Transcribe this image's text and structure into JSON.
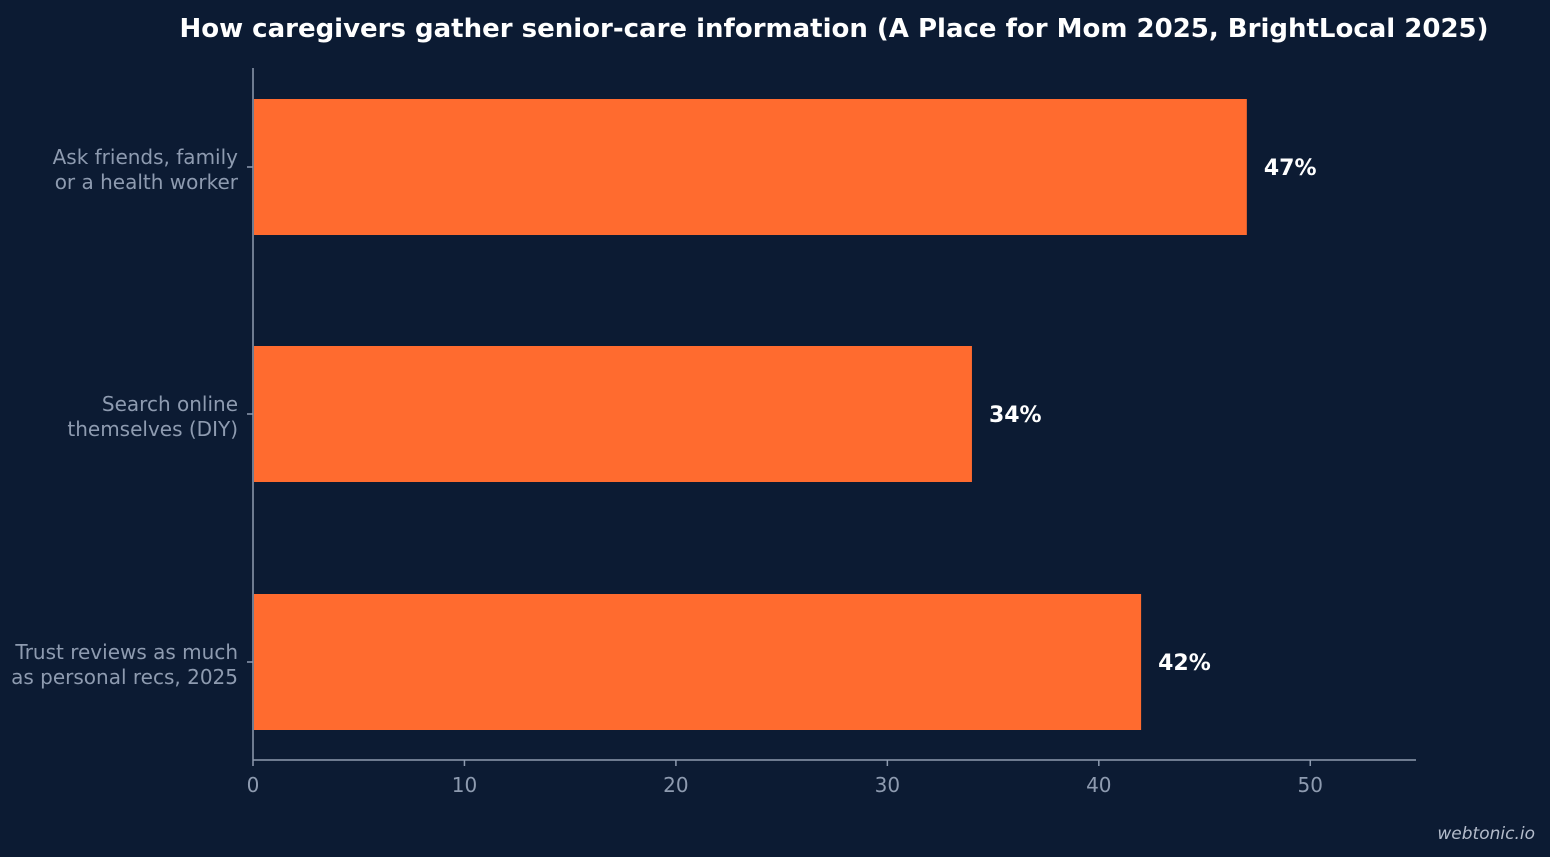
{
  "chart_data": {
    "type": "bar",
    "orientation": "horizontal",
    "title": "How caregivers gather senior-care information (A Place for Mom 2025, BrightLocal 2025)",
    "categories": [
      [
        "Ask friends, family",
        "or a health worker"
      ],
      [
        "Search online",
        "themselves (DIY)"
      ],
      [
        "Trust reviews as much",
        "as personal recs, 2025"
      ]
    ],
    "values": [
      47,
      34,
      42
    ],
    "value_labels": [
      "47%",
      "34%",
      "42%"
    ],
    "xlim": [
      0,
      55
    ],
    "xticks": [
      0,
      10,
      20,
      30,
      40,
      50
    ],
    "grid": false,
    "legend": "none",
    "bar_color": "#ff6b2f",
    "background_color": "#0c1b33",
    "axis_color": "#8e9bb0"
  },
  "watermark": "webtonic.io"
}
